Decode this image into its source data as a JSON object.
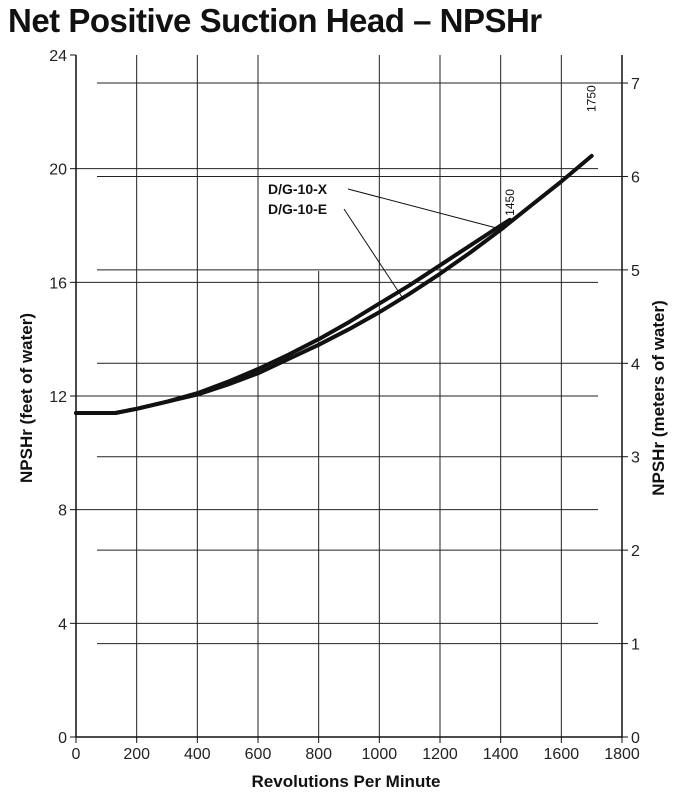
{
  "chart_data": {
    "type": "line",
    "title": "Net Positive Suction Head –  NPSHr",
    "xlabel": "Revolutions Per Minute",
    "ylabel": "NPSHr (feet of water)",
    "y2label": "NPSHr  (meters of water)",
    "xlim": [
      0,
      1800
    ],
    "ylim": [
      0,
      24
    ],
    "y2lim": [
      0,
      7.3
    ],
    "x_ticks": [
      0,
      200,
      400,
      600,
      800,
      1000,
      1200,
      1400,
      1600,
      1800
    ],
    "y_ticks": [
      0,
      4,
      8,
      12,
      16,
      20,
      24
    ],
    "y2_ticks": [
      0,
      1,
      2,
      3,
      4,
      5,
      6,
      7
    ],
    "grid": true,
    "series": [
      {
        "name": "D/G-10-X",
        "end_label": "1450",
        "x": [
          0,
          130,
          200,
          300,
          400,
          500,
          600,
          700,
          800,
          900,
          1000,
          1100,
          1200,
          1300,
          1400,
          1430
        ],
        "y": [
          11.4,
          11.4,
          11.55,
          11.8,
          12.1,
          12.5,
          12.95,
          13.45,
          14.0,
          14.6,
          15.25,
          15.9,
          16.6,
          17.3,
          18.0,
          18.2
        ]
      },
      {
        "name": "D/G-10-E",
        "end_label": "1750",
        "x": [
          0,
          130,
          200,
          300,
          400,
          500,
          600,
          700,
          800,
          900,
          1000,
          1100,
          1200,
          1300,
          1400,
          1500,
          1600,
          1700
        ],
        "y": [
          11.4,
          11.4,
          11.55,
          11.8,
          12.05,
          12.4,
          12.8,
          13.3,
          13.8,
          14.35,
          14.95,
          15.6,
          16.3,
          17.05,
          17.85,
          18.7,
          19.55,
          20.45
        ]
      }
    ]
  }
}
